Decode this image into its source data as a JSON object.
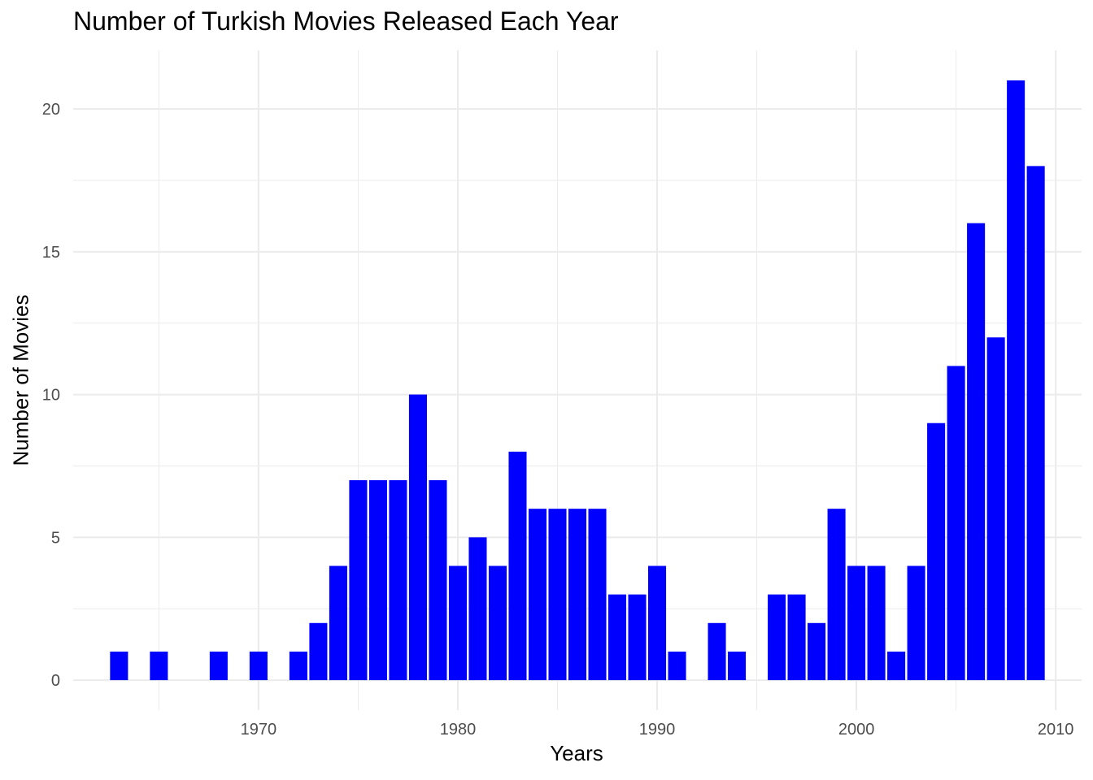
{
  "chart_data": {
    "type": "bar",
    "title": "Number of Turkish Movies Released Each Year",
    "xlabel": "Years",
    "ylabel": "Number of Movies",
    "bar_color": "#0000ff",
    "grid": true,
    "xlim": [
      1960.7,
      2011.3
    ],
    "ylim": [
      -1.05,
      22.05
    ],
    "x_ticks": [
      1970,
      1980,
      1990,
      2000,
      2010
    ],
    "y_ticks": [
      0,
      5,
      10,
      15,
      20
    ],
    "x": [
      1963,
      1965,
      1968,
      1970,
      1972,
      1973,
      1974,
      1975,
      1976,
      1977,
      1978,
      1979,
      1980,
      1981,
      1982,
      1983,
      1984,
      1985,
      1986,
      1987,
      1988,
      1989,
      1990,
      1991,
      1993,
      1994,
      1996,
      1997,
      1998,
      1999,
      2000,
      2001,
      2002,
      2003,
      2004,
      2005,
      2006,
      2007,
      2008,
      2009
    ],
    "values": [
      1,
      1,
      1,
      1,
      1,
      2,
      4,
      7,
      7,
      7,
      10,
      7,
      4,
      5,
      4,
      8,
      6,
      6,
      6,
      6,
      3,
      3,
      4,
      1,
      2,
      1,
      3,
      3,
      2,
      6,
      4,
      4,
      1,
      4,
      9,
      11,
      16,
      12,
      21,
      18
    ]
  }
}
